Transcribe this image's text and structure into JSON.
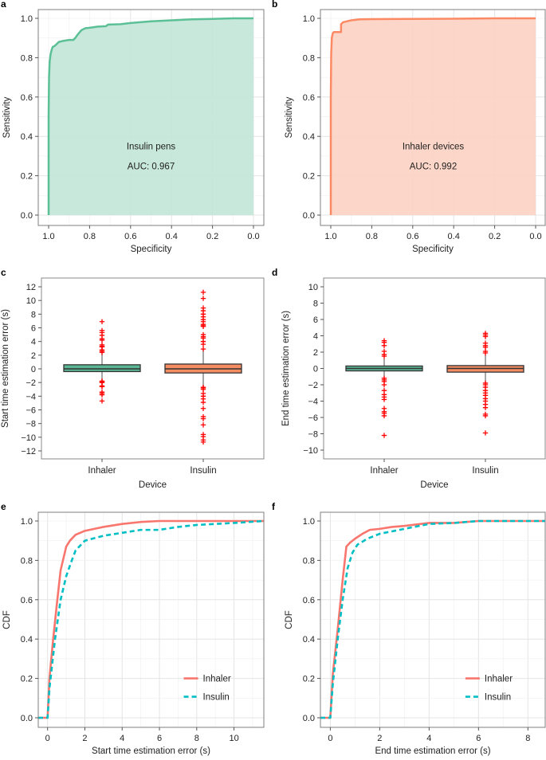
{
  "chart_data": [
    {
      "panel": "a",
      "type": "area",
      "title": "",
      "xlabel": "Specificity",
      "ylabel": "Sensitivity",
      "xlim": [
        1.0,
        0.0
      ],
      "ylim": [
        0.0,
        1.0
      ],
      "xticks": [
        "1.0",
        "0.8",
        "0.6",
        "0.4",
        "0.2",
        "0.0"
      ],
      "yticks": [
        "0.0",
        "0.2",
        "0.4",
        "0.6",
        "0.8",
        "1.0"
      ],
      "grid": true,
      "annotation_title": "Insulin pens",
      "annotation_auc": "AUC: 0.967",
      "color": "#5cc097",
      "fill": "#c2e5d7",
      "series": [
        {
          "name": "Insulin pens ROC",
          "x": [
            1.0,
            1.0,
            0.998,
            0.995,
            0.99,
            0.985,
            0.98,
            0.97,
            0.96,
            0.95,
            0.93,
            0.9,
            0.88,
            0.87,
            0.86,
            0.84,
            0.82,
            0.8,
            0.76,
            0.72,
            0.71,
            0.65,
            0.6,
            0.5,
            0.4,
            0.3,
            0.2,
            0.1,
            0.0
          ],
          "y": [
            0.0,
            0.5,
            0.7,
            0.78,
            0.82,
            0.84,
            0.855,
            0.86,
            0.87,
            0.88,
            0.885,
            0.89,
            0.89,
            0.9,
            0.915,
            0.94,
            0.95,
            0.952,
            0.958,
            0.96,
            0.968,
            0.97,
            0.976,
            0.985,
            0.99,
            0.995,
            0.997,
            1.0,
            1.0
          ]
        }
      ]
    },
    {
      "panel": "b",
      "type": "area",
      "title": "",
      "xlabel": "Specificity",
      "ylabel": "Sensitivity",
      "xlim": [
        1.0,
        0.0
      ],
      "ylim": [
        0.0,
        1.0
      ],
      "xticks": [
        "1.0",
        "0.8",
        "0.6",
        "0.4",
        "0.2",
        "0.0"
      ],
      "yticks": [
        "0.0",
        "0.2",
        "0.4",
        "0.6",
        "0.8",
        "1.0"
      ],
      "grid": true,
      "annotation_title": "Inhaler devices",
      "annotation_auc": "AUC: 0.992",
      "color": "#fb8a64",
      "fill": "#fcd2c2",
      "series": [
        {
          "name": "Inhaler devices ROC",
          "x": [
            1.0,
            1.0,
            0.998,
            0.995,
            0.99,
            0.985,
            0.95,
            0.95,
            0.94,
            0.92,
            0.9,
            0.86,
            0.8,
            0.6,
            0.4,
            0.2,
            0.0
          ],
          "y": [
            0.0,
            0.6,
            0.82,
            0.9,
            0.925,
            0.93,
            0.93,
            0.97,
            0.98,
            0.985,
            0.99,
            0.995,
            0.996,
            0.997,
            0.998,
            1.0,
            1.0
          ]
        }
      ]
    },
    {
      "panel": "c",
      "type": "box",
      "xlabel": "Device",
      "ylabel": "Start time estimation error (s)",
      "categories": [
        "Inhaler",
        "Insulin"
      ],
      "ylim": [
        -13,
        13
      ],
      "yticks": [
        "12",
        "10",
        "8",
        "6",
        "4",
        "2",
        "0",
        "−2",
        "−4",
        "−6",
        "−8",
        "−10",
        "−12"
      ],
      "tick_values": [
        12,
        10,
        8,
        6,
        4,
        2,
        0,
        -2,
        -4,
        -6,
        -8,
        -10,
        -12
      ],
      "boxes": [
        {
          "name": "Inhaler",
          "color": "#5ab695",
          "q1": -0.4,
          "median": 0.0,
          "q3": 0.6,
          "whisker_low": -1.7,
          "whisker_high": 2.2,
          "outliers": [
            6.9,
            5.6,
            5.3,
            4.9,
            4.4,
            4.2,
            3.5,
            3.3,
            3.2,
            2.8,
            2.6,
            2.4,
            -1.8,
            -1.9,
            -2.0,
            -2.5,
            -2.6,
            -3.4,
            -3.6,
            -3.8,
            -4.7
          ]
        },
        {
          "name": "Insulin",
          "color": "#f58d62",
          "q1": -0.6,
          "median": 0.0,
          "q3": 0.7,
          "whisker_low": -2.6,
          "whisker_high": 2.8,
          "outliers": [
            11.2,
            10.3,
            8.9,
            8.5,
            8.0,
            7.6,
            7.2,
            6.9,
            6.5,
            6.3,
            6.2,
            5.0,
            4.7,
            4.5,
            4.0,
            3.6,
            2.9,
            -2.7,
            -2.8,
            -3.0,
            -3.6,
            -4.0,
            -4.4,
            -4.9,
            -5.8,
            -7.0,
            -7.3,
            -8.2,
            -9.6,
            -9.9,
            -10.4,
            -10.7
          ]
        }
      ],
      "outlier_color": "#ff0000"
    },
    {
      "panel": "d",
      "type": "box",
      "xlabel": "Device",
      "ylabel": "End time estimation error (s)",
      "categories": [
        "Inhaler",
        "Insulin"
      ],
      "ylim": [
        -11,
        11
      ],
      "yticks": [
        "10",
        "8",
        "6",
        "4",
        "2",
        "0",
        "−2",
        "−4",
        "−6",
        "−8",
        "−10"
      ],
      "tick_values": [
        10,
        8,
        6,
        4,
        2,
        0,
        -2,
        -4,
        -6,
        -8,
        -10
      ],
      "boxes": [
        {
          "name": "Inhaler",
          "color": "#5ab695",
          "q1": -0.3,
          "median": 0.0,
          "q3": 0.3,
          "whisker_low": -1.0,
          "whisker_high": 1.2,
          "outliers": [
            3.4,
            3.2,
            2.8,
            2.1,
            1.7,
            1.5,
            -1.2,
            -1.4,
            -1.6,
            -2.0,
            -2.7,
            -3.2,
            -3.5,
            -3.8,
            -4.9,
            -5.3,
            -5.5,
            -5.8,
            -8.2
          ]
        },
        {
          "name": "Insulin",
          "color": "#f58d62",
          "q1": -0.45,
          "median": 0.0,
          "q3": 0.35,
          "whisker_low": -1.7,
          "whisker_high": 1.7,
          "outliers": [
            4.3,
            4.1,
            3.9,
            3.1,
            2.8,
            2.6,
            2.1,
            1.9,
            -1.8,
            -2.0,
            -2.3,
            -2.7,
            -3.0,
            -3.3,
            -3.7,
            -4.0,
            -4.4,
            -4.8,
            -5.6,
            -5.8,
            -7.9
          ]
        }
      ],
      "outlier_color": "#ff0000"
    },
    {
      "panel": "e",
      "type": "line",
      "xlabel": "Start time estimation error (s)",
      "ylabel": "CDF",
      "xlim": [
        -0.5,
        11.6
      ],
      "ylim": [
        0.0,
        1.0
      ],
      "xticks": [
        "0",
        "2",
        "4",
        "6",
        "8",
        "10"
      ],
      "xtick_values": [
        0,
        2,
        4,
        6,
        8,
        10
      ],
      "yticks": [
        "0.0",
        "0.2",
        "0.4",
        "0.6",
        "0.8",
        "1.0"
      ],
      "grid": true,
      "legend": "bottom-right",
      "series": [
        {
          "name": "Inhaler",
          "style": "solid",
          "color": "#f8766d",
          "x": [
            -0.5,
            0.0,
            0.1,
            0.3,
            0.5,
            0.7,
            0.9,
            1.0,
            1.2,
            1.5,
            2.0,
            2.5,
            3.0,
            4.0,
            5.0,
            6.0,
            7.0,
            11.6
          ],
          "y": [
            0.0,
            0.0,
            0.2,
            0.4,
            0.58,
            0.75,
            0.83,
            0.87,
            0.9,
            0.93,
            0.95,
            0.96,
            0.97,
            0.985,
            0.995,
            1.0,
            1.0,
            1.0
          ]
        },
        {
          "name": "Insulin",
          "style": "dashed",
          "color": "#00bfc4",
          "x": [
            -0.5,
            0.0,
            0.1,
            0.4,
            0.7,
            1.0,
            1.3,
            1.5,
            2.0,
            3.0,
            4.0,
            5.0,
            6.0,
            7.0,
            8.0,
            10.0,
            11.6
          ],
          "y": [
            0.0,
            0.0,
            0.15,
            0.4,
            0.6,
            0.72,
            0.8,
            0.85,
            0.9,
            0.925,
            0.94,
            0.955,
            0.955,
            0.97,
            0.98,
            0.99,
            1.0
          ]
        }
      ]
    },
    {
      "panel": "f",
      "type": "line",
      "xlabel": "End time estimation error (s)",
      "ylabel": "CDF",
      "xlim": [
        -0.4,
        8.7
      ],
      "ylim": [
        0.0,
        1.0
      ],
      "xticks": [
        "0",
        "2",
        "4",
        "6",
        "8"
      ],
      "xtick_values": [
        0,
        2,
        4,
        6,
        8
      ],
      "yticks": [
        "0.0",
        "0.2",
        "0.4",
        "0.6",
        "0.8",
        "1.0"
      ],
      "grid": true,
      "legend": "bottom-right",
      "series": [
        {
          "name": "Inhaler",
          "style": "solid",
          "color": "#f8766d",
          "x": [
            -0.4,
            0.0,
            0.1,
            0.3,
            0.5,
            0.65,
            0.8,
            1.0,
            1.3,
            1.6,
            2.0,
            2.5,
            3.0,
            4.0,
            5.0,
            6.0,
            8.7
          ],
          "y": [
            0.0,
            0.0,
            0.22,
            0.45,
            0.7,
            0.87,
            0.89,
            0.91,
            0.935,
            0.955,
            0.96,
            0.97,
            0.975,
            0.99,
            0.99,
            1.0,
            1.0
          ]
        },
        {
          "name": "Insulin",
          "style": "dashed",
          "color": "#00bfc4",
          "x": [
            -0.4,
            0.0,
            0.1,
            0.3,
            0.5,
            0.7,
            0.9,
            1.1,
            1.5,
            2.0,
            3.0,
            4.0,
            5.0,
            6.0,
            8.7
          ],
          "y": [
            0.0,
            0.0,
            0.17,
            0.4,
            0.6,
            0.76,
            0.84,
            0.88,
            0.91,
            0.935,
            0.96,
            0.985,
            0.99,
            1.0,
            1.0
          ]
        }
      ]
    }
  ]
}
